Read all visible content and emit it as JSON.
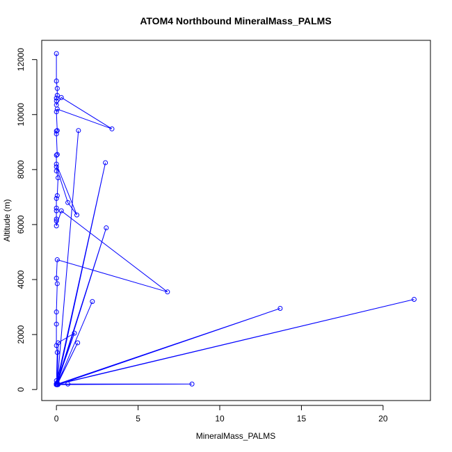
{
  "chart_data": {
    "type": "line",
    "title": "ATOM4 Northbound MineralMass_PALMS",
    "xlabel": "MineralMass_PALMS",
    "ylabel": "Altitude (m)",
    "xlim": [
      -0.9,
      22.9
    ],
    "ylim": [
      -400,
      12700
    ],
    "xticks": [
      0,
      5,
      10,
      15,
      20
    ],
    "yticks": [
      0,
      2000,
      4000,
      6000,
      8000,
      10000,
      12000
    ],
    "grid": false,
    "legend": "none",
    "color": "#0000ff",
    "marker": "open-circle",
    "series": [
      {
        "x": [
          0,
          0,
          0.05,
          0.05,
          0,
          0,
          0,
          0.3,
          3.4,
          0.05,
          0,
          0.05,
          0,
          0,
          0.05,
          0,
          0,
          1.25,
          0.7,
          0,
          0,
          0.1,
          0.05,
          0,
          0,
          0,
          0,
          0,
          0,
          0.3,
          6.8,
          0.05,
          0,
          0.05,
          0,
          0,
          0,
          0.05,
          0,
          0.05,
          0,
          0.05,
          0.05,
          0,
          0,
          0,
          0,
          0.05,
          0,
          1.1,
          0.1,
          0.05,
          0,
          0,
          0,
          0.7,
          0.05,
          1.3,
          0.05,
          0.05,
          0,
          0.05,
          0,
          0.05,
          0.05,
          13.7,
          0.1,
          0,
          0.05,
          0.05,
          3.0,
          0,
          0.05,
          0,
          0.05,
          0.05,
          1.35,
          0.05,
          2.2,
          0.05,
          0,
          0.05,
          0,
          0.05,
          0,
          0,
          0,
          0,
          0,
          0.05,
          0.05,
          21.9,
          0,
          0,
          0.05,
          0.05,
          3.05,
          0,
          0,
          8.3,
          0.05,
          0,
          0,
          0.05,
          0.05,
          0
        ],
        "y": [
          12220,
          11220,
          10950,
          10700,
          10600,
          10500,
          10350,
          10620,
          9480,
          10200,
          10100,
          9420,
          9400,
          9300,
          8550,
          8520,
          8200,
          6350,
          6800,
          8100,
          7950,
          7700,
          7050,
          6950,
          6600,
          6500,
          6200,
          6130,
          5950,
          6500,
          3550,
          4720,
          4050,
          3850,
          2820,
          2380,
          1600,
          1350,
          200,
          180,
          200,
          200,
          250,
          320,
          190,
          200,
          180,
          200,
          190,
          2050,
          1700,
          200,
          190,
          200,
          180,
          200,
          180,
          1700,
          200,
          180,
          200,
          190,
          200,
          180,
          200,
          2950,
          180,
          200,
          190,
          200,
          8250,
          200,
          180,
          200,
          190,
          180,
          9420,
          200,
          3200,
          200,
          180,
          200,
          190,
          200,
          180,
          200,
          190,
          200,
          180,
          200,
          200,
          3280,
          180,
          200,
          190,
          200,
          5880,
          200,
          200,
          200,
          180,
          200,
          190,
          200,
          180,
          200
        ]
      }
    ]
  }
}
